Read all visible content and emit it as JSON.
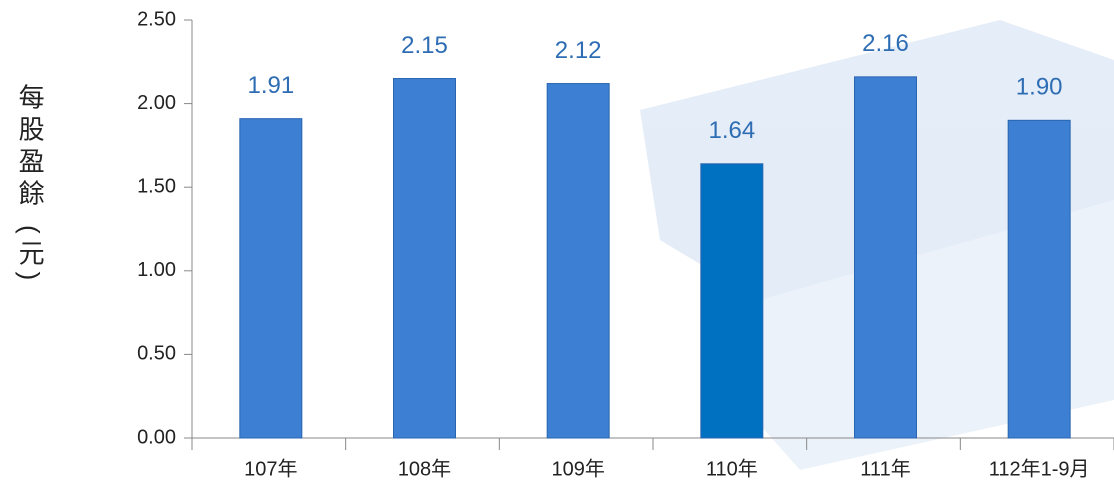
{
  "chart_data": {
    "type": "bar",
    "y_label": "每股盈餘 (元)",
    "categories": [
      "107年",
      "108年",
      "109年",
      "110年",
      "111年",
      "112年1-9月"
    ],
    "values": [
      1.91,
      2.15,
      2.12,
      1.64,
      2.16,
      1.9
    ],
    "value_labels": [
      "1.91",
      "2.15",
      "2.12",
      "1.64",
      "2.16",
      "1.90"
    ],
    "colors": [
      "#3d7fd3",
      "#3d7fd3",
      "#3d7fd3",
      "#0070c0",
      "#3d7fd3",
      "#3d7fd3"
    ],
    "ylim": [
      0,
      2.5
    ],
    "yticks": [
      {
        "value": 0,
        "label": "0.00"
      },
      {
        "value": 0.5,
        "label": "0.50"
      },
      {
        "value": 1,
        "label": "1.00"
      },
      {
        "value": 1.5,
        "label": "1.50"
      },
      {
        "value": 2,
        "label": "2.00"
      },
      {
        "value": 2.5,
        "label": "2.50"
      }
    ],
    "grid": false
  }
}
